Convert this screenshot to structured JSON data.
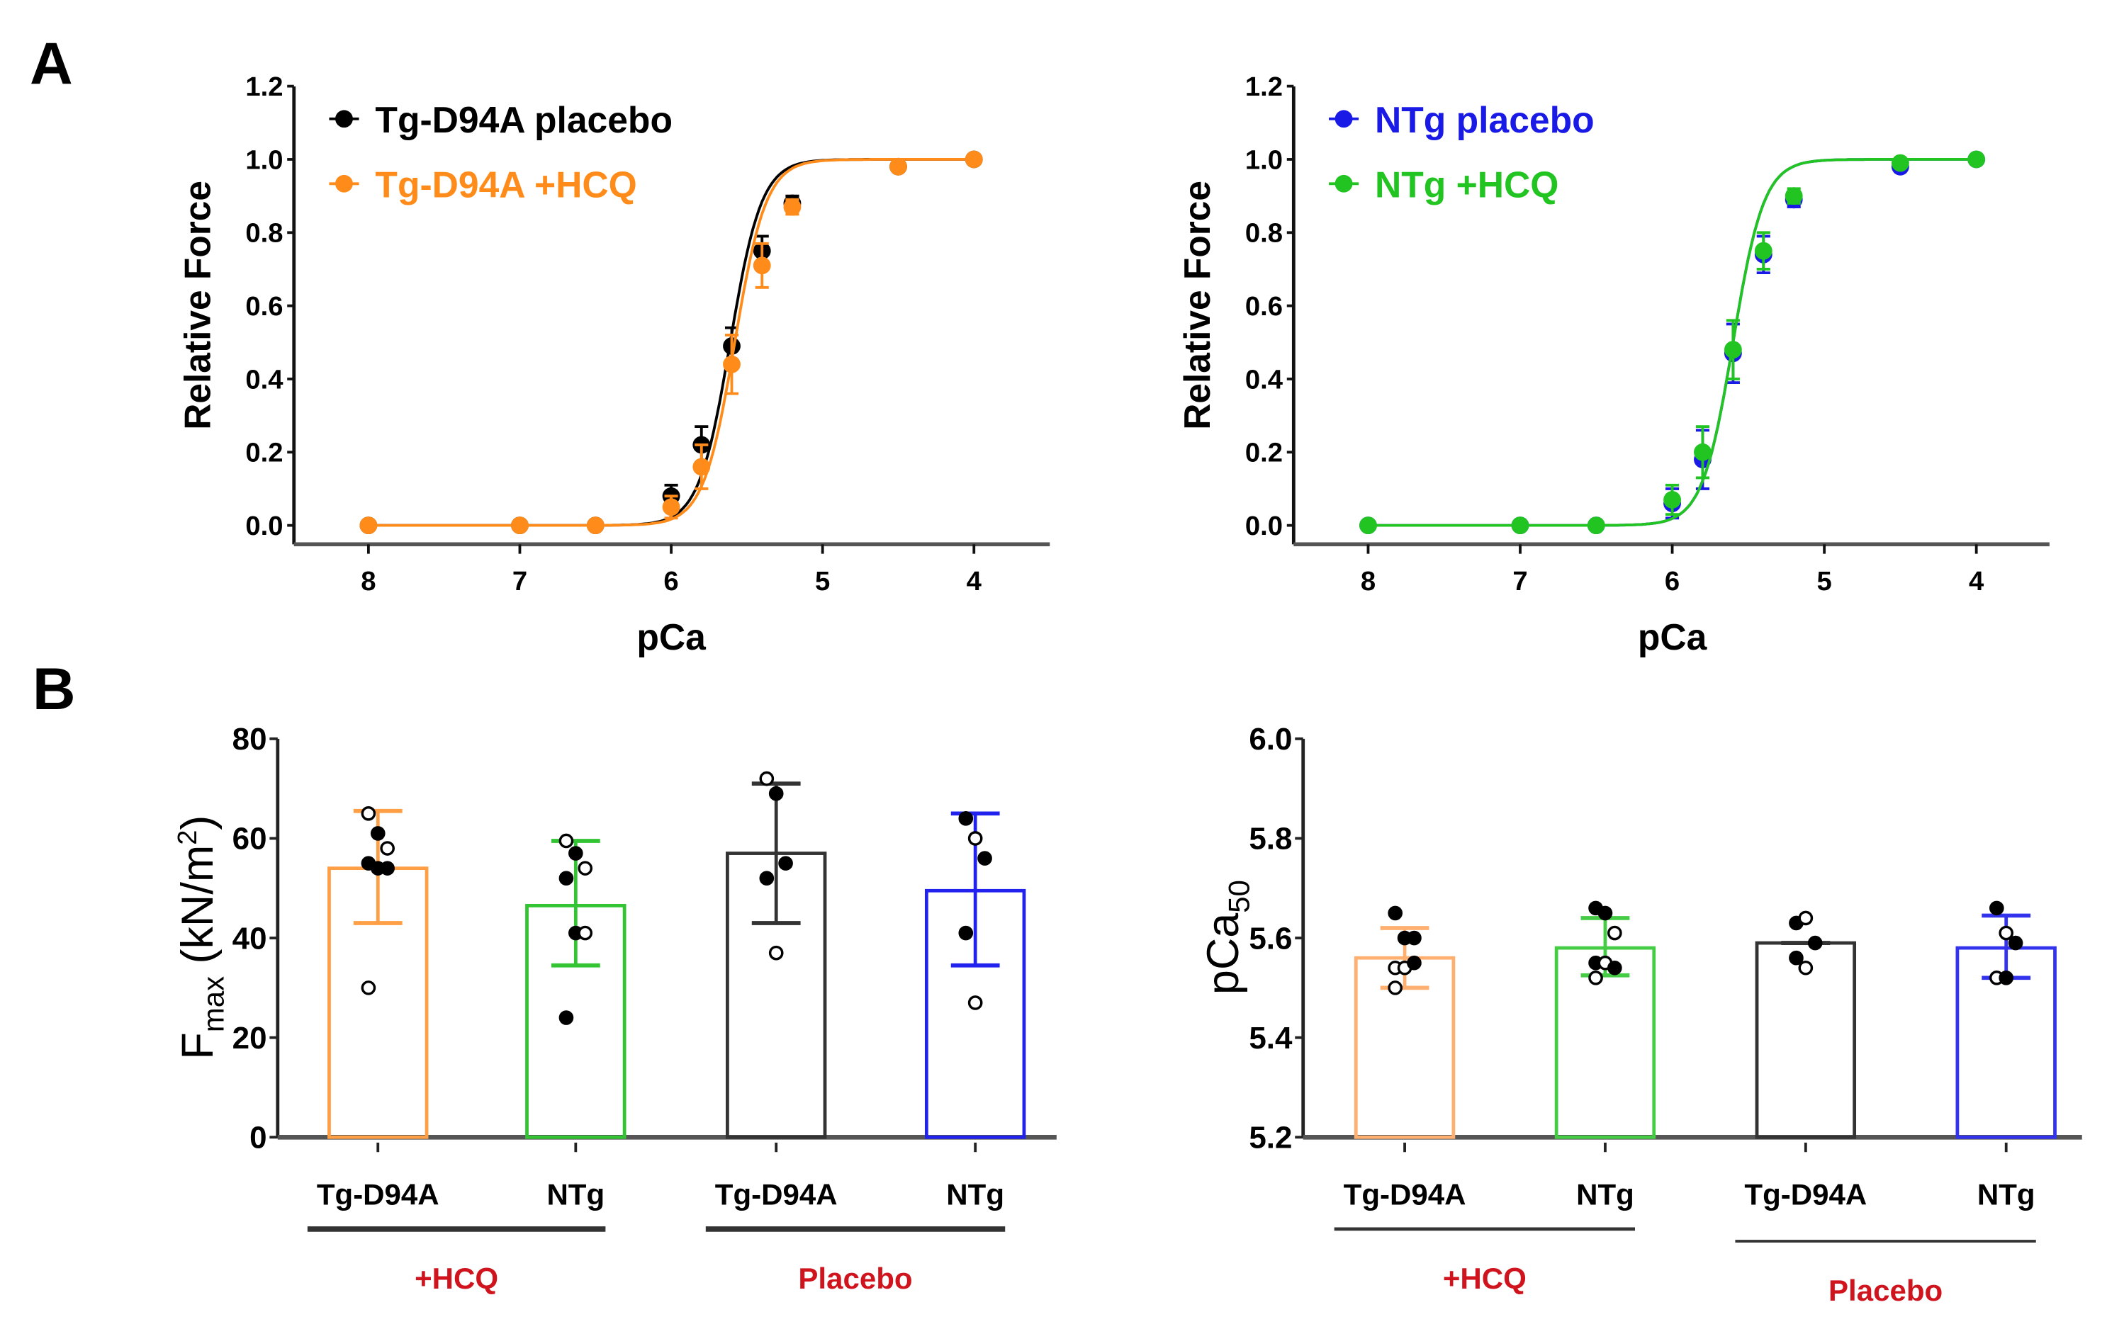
{
  "panel_labels": [
    "A",
    "B"
  ],
  "chart_data": [
    {
      "type": "line",
      "panel": "A-left",
      "xlabel": "pCa",
      "ylabel": "Relative Force",
      "xlim": [
        8.5,
        3.5
      ],
      "ylim": [
        0,
        1.2
      ],
      "xticks": [
        "8",
        "7",
        "6",
        "5",
        "4"
      ],
      "yticks": [
        "0.0",
        "0.2",
        "0.4",
        "0.6",
        "0.8",
        "1.0",
        "1.2"
      ],
      "legend": "top-left",
      "x": [
        8,
        7,
        6.5,
        6,
        5.8,
        5.6,
        5.4,
        5.2,
        4.5,
        4
      ],
      "series": [
        {
          "name": "Tg-D94A placebo",
          "color": "#000000",
          "values": [
            0,
            0,
            0,
            0.08,
            0.22,
            0.49,
            0.75,
            0.88,
            0.98,
            1.0
          ],
          "err": [
            0,
            0,
            0,
            0.03,
            0.05,
            0.05,
            0.04,
            0.02,
            0.01,
            0
          ],
          "fit": {
            "pCa50": 5.61,
            "hill": 4.2
          }
        },
        {
          "name": "Tg-D94A +HCQ",
          "color": "#FF8C1A",
          "values": [
            0,
            0,
            0,
            0.05,
            0.16,
            0.44,
            0.71,
            0.87,
            0.98,
            1.0
          ],
          "err": [
            0,
            0,
            0,
            0.03,
            0.06,
            0.08,
            0.06,
            0.02,
            0.01,
            0
          ],
          "fit": {
            "pCa50": 5.58,
            "hill": 4.2
          }
        }
      ]
    },
    {
      "type": "line",
      "panel": "A-right",
      "xlabel": "pCa",
      "ylabel": "Relative Force",
      "xlim": [
        8.5,
        3.5
      ],
      "ylim": [
        0,
        1.2
      ],
      "xticks": [
        "8",
        "7",
        "6",
        "5",
        "4"
      ],
      "yticks": [
        "0.0",
        "0.2",
        "0.4",
        "0.6",
        "0.8",
        "1.0",
        "1.2"
      ],
      "legend": "top-left",
      "x": [
        8,
        7,
        6.5,
        6,
        5.8,
        5.6,
        5.4,
        5.2,
        4.5,
        4
      ],
      "series": [
        {
          "name": "NTg placebo",
          "color": "#1A1AE6",
          "values": [
            0,
            0,
            0,
            0.06,
            0.18,
            0.47,
            0.74,
            0.89,
            0.98,
            1.0
          ],
          "err": [
            0,
            0,
            0,
            0.04,
            0.08,
            0.08,
            0.05,
            0.02,
            0.01,
            0
          ],
          "fit": {
            "pCa50": 5.6,
            "hill": 4.3
          }
        },
        {
          "name": "NTg +HCQ",
          "color": "#22C422",
          "values": [
            0,
            0,
            0,
            0.07,
            0.2,
            0.48,
            0.75,
            0.9,
            0.99,
            1.0
          ],
          "err": [
            0,
            0,
            0,
            0.04,
            0.07,
            0.08,
            0.05,
            0.02,
            0.01,
            0
          ],
          "fit": {
            "pCa50": 5.6,
            "hill": 4.3
          }
        }
      ]
    },
    {
      "type": "bar",
      "panel": "B-left",
      "ylabel_main": "F",
      "ylabel_sub": "max",
      "ylabel_unit": " (kN/m",
      "ylabel_sup": "2",
      "ylabel_close": ")",
      "ylim": [
        0,
        80
      ],
      "yticks": [
        "0",
        "20",
        "40",
        "60",
        "80"
      ],
      "categories": [
        "Tg-D94A",
        "NTg",
        "Tg-D94A",
        "NTg"
      ],
      "groups": [
        "+HCQ",
        "Placebo"
      ],
      "colors": [
        "#FF9F45",
        "#33C433",
        "#333333",
        "#2222EE"
      ],
      "values": [
        54,
        46.5,
        57,
        49.5
      ],
      "err_low": [
        43,
        34.5,
        43,
        34.5
      ],
      "err_high": [
        65.5,
        59.5,
        71,
        65
      ],
      "points": [
        [
          [
            65,
            0
          ],
          [
            61,
            1
          ],
          [
            58,
            0
          ],
          [
            55,
            1
          ],
          [
            54,
            1
          ],
          [
            54,
            1
          ],
          [
            30,
            0
          ]
        ],
        [
          [
            59.5,
            0
          ],
          [
            57,
            1
          ],
          [
            54,
            0
          ],
          [
            52,
            1
          ],
          [
            41,
            1
          ],
          [
            41,
            0
          ],
          [
            24,
            1
          ]
        ],
        [
          [
            72,
            0
          ],
          [
            69,
            1
          ],
          [
            55,
            1
          ],
          [
            52,
            1
          ],
          [
            37,
            0
          ]
        ],
        [
          [
            64,
            1
          ],
          [
            60,
            0
          ],
          [
            56,
            1
          ],
          [
            41,
            1
          ],
          [
            27,
            0
          ]
        ]
      ]
    },
    {
      "type": "bar",
      "panel": "B-right",
      "ylabel_main": "pCa",
      "ylabel_sub": "50",
      "ylim": [
        5.2,
        6.0
      ],
      "yticks": [
        "5.2",
        "5.4",
        "5.6",
        "5.8",
        "6.0"
      ],
      "categories": [
        "Tg-D94A",
        "NTg",
        "Tg-D94A",
        "NTg"
      ],
      "groups": [
        "+HCQ",
        "Placebo"
      ],
      "colors": [
        "#FFB070",
        "#44CC44",
        "#333333",
        "#3333EE"
      ],
      "values": [
        5.56,
        5.58,
        5.59,
        5.58
      ],
      "err_low": [
        5.5,
        5.525,
        5.59,
        5.52
      ],
      "err_high": [
        5.62,
        5.64,
        5.59,
        5.645
      ],
      "points": [
        [
          [
            5.65,
            1
          ],
          [
            5.6,
            1
          ],
          [
            5.6,
            1
          ],
          [
            5.54,
            0
          ],
          [
            5.54,
            0
          ],
          [
            5.55,
            1
          ],
          [
            5.5,
            0
          ]
        ],
        [
          [
            5.66,
            1
          ],
          [
            5.65,
            1
          ],
          [
            5.61,
            0
          ],
          [
            5.55,
            1
          ],
          [
            5.55,
            0
          ],
          [
            5.54,
            1
          ],
          [
            5.52,
            0
          ]
        ],
        [
          [
            5.63,
            1
          ],
          [
            5.64,
            0
          ],
          [
            5.59,
            1
          ],
          [
            5.56,
            1
          ],
          [
            5.54,
            0
          ]
        ],
        [
          [
            5.66,
            1
          ],
          [
            5.61,
            0
          ],
          [
            5.59,
            1
          ],
          [
            5.52,
            0
          ],
          [
            5.52,
            1
          ]
        ]
      ]
    }
  ]
}
